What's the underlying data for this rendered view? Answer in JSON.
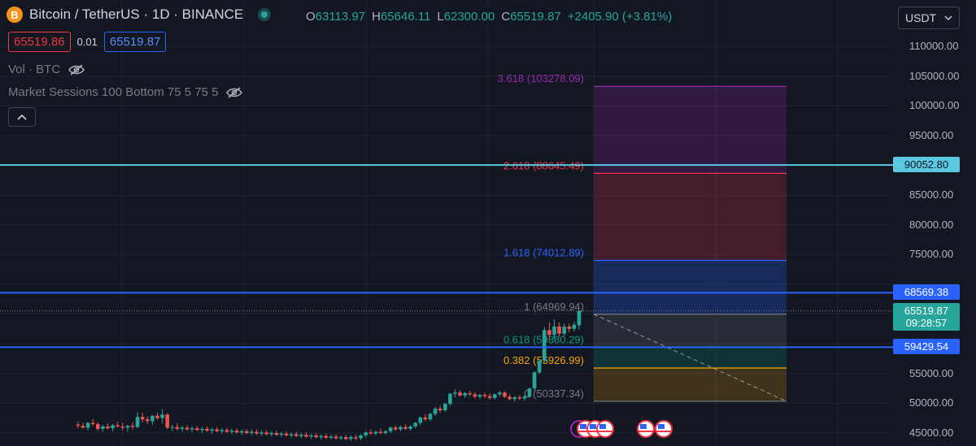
{
  "header": {
    "logo_letter": "B",
    "title": "Bitcoin / TetherUS · 1D · BINANCE"
  },
  "ohlc": {
    "o_label": "O",
    "o": "63113.97",
    "h_label": "H",
    "h": "65646.11",
    "l_label": "L",
    "l": "62300.00",
    "c_label": "C",
    "c": "65519.87",
    "change": "+2405.90 (+3.81%)"
  },
  "quote": {
    "sell": "65519.86",
    "spread": "0.01",
    "buy": "65519.87"
  },
  "indicators": [
    {
      "label": "Vol · BTC"
    },
    {
      "label": "Market Sessions 100 Bottom 75 5 75 5"
    }
  ],
  "collapse_icon": "chevron-up-icon",
  "currency": {
    "label": "USDT"
  },
  "price_axis": {
    "min": 43000,
    "max": 115000,
    "ticks": [
      "45000.00",
      "50000.00",
      "55000.00",
      "60000.00",
      "65000.00",
      "70000.00",
      "75000.00",
      "80000.00",
      "85000.00",
      "90000.00",
      "95000.00",
      "100000.00",
      "105000.00",
      "110000.00"
    ],
    "tags": [
      {
        "price": 90052.8,
        "label": "90052.80",
        "color": "#5ac8e0"
      },
      {
        "price": 68569.38,
        "label": "68569.38",
        "color": "#2962ff"
      },
      {
        "price": 59429.54,
        "label": "59429.54",
        "color": "#2962ff"
      }
    ],
    "current": {
      "price": 65519.87,
      "label": "65519.87",
      "countdown": "09:28:57",
      "color": "#26a69a"
    }
  },
  "hlines": [
    {
      "price": 90052.8,
      "color": "#5ac8e0"
    },
    {
      "price": 68569.38,
      "color": "#2962ff"
    },
    {
      "price": 59429.54,
      "color": "#2962ff"
    }
  ],
  "fib": {
    "levels": [
      {
        "ratio": 3.618,
        "label": "3.618 (103278.09)",
        "price": 103278.09,
        "color": "#9c27b0",
        "fill": "rgba(156,39,176,0.22)"
      },
      {
        "ratio": 2.618,
        "label": "2.618 (88645.49)",
        "price": 88645.49,
        "color": "#f23645",
        "fill": "rgba(242,54,69,0.22)"
      },
      {
        "ratio": 1.618,
        "label": "1.618 (74012.89)",
        "price": 74012.89,
        "color": "#2962ff",
        "fill": "rgba(41,98,255,0.25)"
      },
      {
        "ratio": 1,
        "label": "1 (64969.94)",
        "price": 64969.94,
        "color": "#787b86",
        "fill": "rgba(120,123,134,0.22)"
      },
      {
        "ratio": 0.618,
        "label": "0.618 (59380.29)",
        "price": 59380.29,
        "color": "#089981",
        "fill": "rgba(8,153,129,0.22)"
      },
      {
        "ratio": 0.382,
        "label": "0.382 (55926.99)",
        "price": 55926.99,
        "color": "#f7a600",
        "fill": "rgba(247,166,0,0.2)"
      },
      {
        "ratio": 0,
        "label": "0 (50337.34)",
        "price": 50337.34,
        "color": "#787b86",
        "fill": ""
      }
    ]
  },
  "candles": [
    {
      "o": 46400,
      "h": 46900,
      "l": 45800,
      "c": 46200
    },
    {
      "o": 46200,
      "h": 46700,
      "l": 45700,
      "c": 45900
    },
    {
      "o": 45900,
      "h": 46900,
      "l": 45400,
      "c": 46700
    },
    {
      "o": 46700,
      "h": 47400,
      "l": 46200,
      "c": 46500
    },
    {
      "o": 46500,
      "h": 46800,
      "l": 45300,
      "c": 45700
    },
    {
      "o": 45700,
      "h": 46400,
      "l": 45200,
      "c": 46100
    },
    {
      "o": 46100,
      "h": 46600,
      "l": 45600,
      "c": 45800
    },
    {
      "o": 45800,
      "h": 46500,
      "l": 45300,
      "c": 46300
    },
    {
      "o": 46300,
      "h": 46900,
      "l": 45900,
      "c": 46100
    },
    {
      "o": 46100,
      "h": 46700,
      "l": 45500,
      "c": 45900
    },
    {
      "o": 45900,
      "h": 46400,
      "l": 45200,
      "c": 46200
    },
    {
      "o": 46200,
      "h": 46800,
      "l": 45600,
      "c": 46000
    },
    {
      "o": 46000,
      "h": 48500,
      "l": 45800,
      "c": 47700
    },
    {
      "o": 47700,
      "h": 48400,
      "l": 46800,
      "c": 47300
    },
    {
      "o": 47300,
      "h": 47800,
      "l": 46500,
      "c": 47000
    },
    {
      "o": 47000,
      "h": 48000,
      "l": 46400,
      "c": 47900
    },
    {
      "o": 47900,
      "h": 48400,
      "l": 47200,
      "c": 47500
    },
    {
      "o": 47500,
      "h": 49000,
      "l": 46600,
      "c": 48100
    },
    {
      "o": 48100,
      "h": 48300,
      "l": 45600,
      "c": 45900
    },
    {
      "o": 45900,
      "h": 46400,
      "l": 45300,
      "c": 46000
    },
    {
      "o": 46000,
      "h": 46600,
      "l": 45400,
      "c": 45700
    },
    {
      "o": 45700,
      "h": 46200,
      "l": 45200,
      "c": 45900
    },
    {
      "o": 45900,
      "h": 46300,
      "l": 45400,
      "c": 45600
    },
    {
      "o": 45600,
      "h": 46100,
      "l": 45100,
      "c": 45800
    },
    {
      "o": 45800,
      "h": 46200,
      "l": 45300,
      "c": 45500
    },
    {
      "o": 45500,
      "h": 46000,
      "l": 45000,
      "c": 45700
    },
    {
      "o": 45700,
      "h": 46100,
      "l": 45200,
      "c": 45400
    },
    {
      "o": 45400,
      "h": 45900,
      "l": 44900,
      "c": 45600
    },
    {
      "o": 45600,
      "h": 46000,
      "l": 45100,
      "c": 45300
    },
    {
      "o": 45300,
      "h": 45800,
      "l": 44900,
      "c": 45500
    },
    {
      "o": 45500,
      "h": 45900,
      "l": 45000,
      "c": 45200
    },
    {
      "o": 45200,
      "h": 45700,
      "l": 44800,
      "c": 45400
    },
    {
      "o": 45400,
      "h": 45800,
      "l": 44900,
      "c": 45100
    },
    {
      "o": 45100,
      "h": 45600,
      "l": 44700,
      "c": 45300
    },
    {
      "o": 45300,
      "h": 45700,
      "l": 44800,
      "c": 45000
    },
    {
      "o": 45000,
      "h": 45600,
      "l": 44600,
      "c": 45200
    },
    {
      "o": 45200,
      "h": 45600,
      "l": 44700,
      "c": 44900
    },
    {
      "o": 44900,
      "h": 45500,
      "l": 44500,
      "c": 45100
    },
    {
      "o": 45100,
      "h": 45500,
      "l": 44600,
      "c": 44800
    },
    {
      "o": 44800,
      "h": 45300,
      "l": 44400,
      "c": 45000
    },
    {
      "o": 45000,
      "h": 45400,
      "l": 44500,
      "c": 44700
    },
    {
      "o": 44700,
      "h": 45200,
      "l": 44300,
      "c": 44900
    },
    {
      "o": 44900,
      "h": 45300,
      "l": 44400,
      "c": 44600
    },
    {
      "o": 44600,
      "h": 45100,
      "l": 44200,
      "c": 44800
    },
    {
      "o": 44800,
      "h": 45200,
      "l": 44300,
      "c": 44500
    },
    {
      "o": 44500,
      "h": 45000,
      "l": 44100,
      "c": 44700
    },
    {
      "o": 44700,
      "h": 45100,
      "l": 44200,
      "c": 44400
    },
    {
      "o": 44400,
      "h": 44900,
      "l": 44000,
      "c": 44600
    },
    {
      "o": 44600,
      "h": 45000,
      "l": 44100,
      "c": 44300
    },
    {
      "o": 44300,
      "h": 44800,
      "l": 43900,
      "c": 44500
    },
    {
      "o": 44500,
      "h": 44900,
      "l": 44000,
      "c": 44200
    },
    {
      "o": 44200,
      "h": 44700,
      "l": 43900,
      "c": 44400
    },
    {
      "o": 44400,
      "h": 44800,
      "l": 43900,
      "c": 44100
    },
    {
      "o": 44100,
      "h": 44600,
      "l": 43800,
      "c": 44300
    },
    {
      "o": 44300,
      "h": 44700,
      "l": 43800,
      "c": 44000
    },
    {
      "o": 44000,
      "h": 44600,
      "l": 43700,
      "c": 44300
    },
    {
      "o": 44300,
      "h": 44700,
      "l": 43800,
      "c": 44100
    },
    {
      "o": 44100,
      "h": 44800,
      "l": 43800,
      "c": 44600
    },
    {
      "o": 44600,
      "h": 45300,
      "l": 44200,
      "c": 45100
    },
    {
      "o": 45100,
      "h": 45600,
      "l": 44700,
      "c": 44900
    },
    {
      "o": 44900,
      "h": 45400,
      "l": 44600,
      "c": 45200
    },
    {
      "o": 45200,
      "h": 45800,
      "l": 44800,
      "c": 45000
    },
    {
      "o": 45000,
      "h": 45500,
      "l": 44700,
      "c": 45300
    },
    {
      "o": 45300,
      "h": 46100,
      "l": 45000,
      "c": 45900
    },
    {
      "o": 45900,
      "h": 46300,
      "l": 45400,
      "c": 45600
    },
    {
      "o": 45600,
      "h": 46200,
      "l": 45300,
      "c": 46000
    },
    {
      "o": 46000,
      "h": 46400,
      "l": 45500,
      "c": 45700
    },
    {
      "o": 45700,
      "h": 46300,
      "l": 45400,
      "c": 46100
    },
    {
      "o": 46100,
      "h": 46900,
      "l": 45800,
      "c": 46700
    },
    {
      "o": 46700,
      "h": 47800,
      "l": 46300,
      "c": 47600
    },
    {
      "o": 47600,
      "h": 48200,
      "l": 47000,
      "c": 47300
    },
    {
      "o": 47300,
      "h": 48400,
      "l": 47000,
      "c": 48200
    },
    {
      "o": 48200,
      "h": 49400,
      "l": 47900,
      "c": 49100
    },
    {
      "o": 49100,
      "h": 49600,
      "l": 48400,
      "c": 48800
    },
    {
      "o": 48800,
      "h": 50100,
      "l": 48500,
      "c": 49900
    },
    {
      "o": 49900,
      "h": 51700,
      "l": 49600,
      "c": 51600
    },
    {
      "o": 51600,
      "h": 52300,
      "l": 51000,
      "c": 51800
    },
    {
      "o": 51800,
      "h": 52200,
      "l": 51100,
      "c": 51300
    },
    {
      "o": 51300,
      "h": 51900,
      "l": 50900,
      "c": 51700
    },
    {
      "o": 51700,
      "h": 52100,
      "l": 51200,
      "c": 51500
    },
    {
      "o": 51500,
      "h": 51900,
      "l": 50800,
      "c": 51100
    },
    {
      "o": 51100,
      "h": 51600,
      "l": 50700,
      "c": 51400
    },
    {
      "o": 51400,
      "h": 51800,
      "l": 50900,
      "c": 51200
    },
    {
      "o": 51200,
      "h": 51700,
      "l": 50600,
      "c": 50900
    },
    {
      "o": 50900,
      "h": 51600,
      "l": 50600,
      "c": 51500
    },
    {
      "o": 51500,
      "h": 52100,
      "l": 51200,
      "c": 51800
    },
    {
      "o": 51800,
      "h": 52000,
      "l": 50900,
      "c": 51100
    },
    {
      "o": 51100,
      "h": 51500,
      "l": 50500,
      "c": 50700
    },
    {
      "o": 50700,
      "h": 51200,
      "l": 50300,
      "c": 51000
    },
    {
      "o": 51000,
      "h": 51400,
      "l": 50500,
      "c": 50800
    },
    {
      "o": 50800,
      "h": 51300,
      "l": 50400,
      "c": 51100
    },
    {
      "o": 51100,
      "h": 52600,
      "l": 50900,
      "c": 52500
    },
    {
      "o": 52500,
      "h": 55400,
      "l": 52200,
      "c": 55200
    },
    {
      "o": 55200,
      "h": 57300,
      "l": 54900,
      "c": 57100
    },
    {
      "o": 57100,
      "h": 62800,
      "l": 56800,
      "c": 62300
    },
    {
      "o": 62300,
      "h": 63600,
      "l": 60500,
      "c": 61500
    },
    {
      "o": 61500,
      "h": 64100,
      "l": 60700,
      "c": 62900
    },
    {
      "o": 62900,
      "h": 63600,
      "l": 61200,
      "c": 61700
    },
    {
      "o": 61700,
      "h": 63400,
      "l": 61300,
      "c": 62900
    },
    {
      "o": 62900,
      "h": 63400,
      "l": 61900,
      "c": 62500
    },
    {
      "o": 62500,
      "h": 63700,
      "l": 62000,
      "c": 63200
    },
    {
      "o": 63113.97,
      "h": 65646.11,
      "l": 62300,
      "c": 65519.87
    }
  ],
  "candle_colors": {
    "up": "#26a69a",
    "down": "#ef5350"
  }
}
